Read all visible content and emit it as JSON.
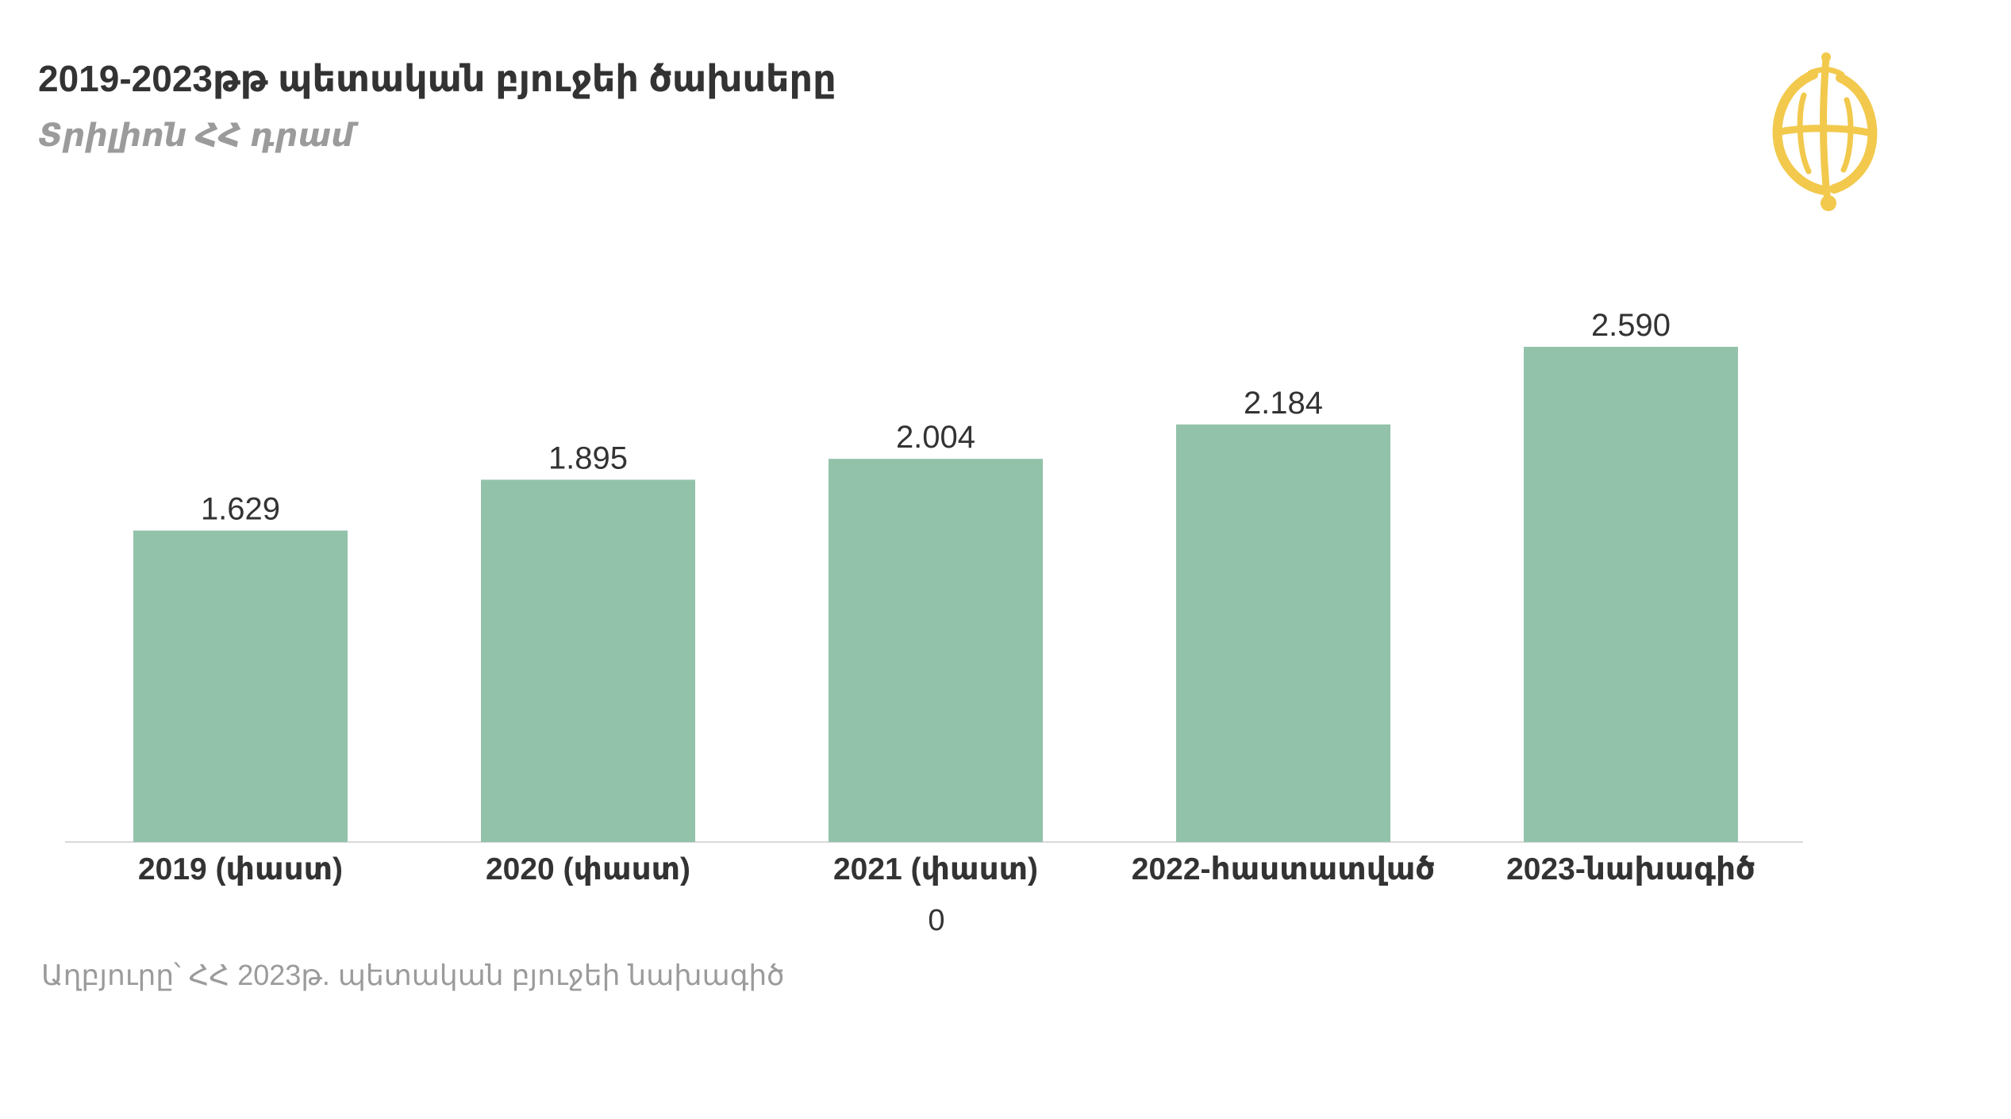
{
  "header": {
    "title": "2019-2023թթ պետական բյուջեի ծախսերը",
    "subtitle": "Տրիլիոն ՀՀ դրամ"
  },
  "logo": {
    "icon": "globe-logo-icon",
    "color": "#f2c94c"
  },
  "source": "Աղբյուրը՝ ՀՀ 2023թ. պետական բյուջեի նախագիծ",
  "colors": {
    "bar": "#93c2aa",
    "axis": "#d9d9d9",
    "text": "#333333",
    "muted": "#9b9b9b"
  },
  "chart_data": {
    "type": "bar",
    "categories": [
      "2019 (փաստ)",
      "2020 (փաստ)",
      "2021 (փաստ)",
      "2022-հաստատված",
      "2023-նախագիծ"
    ],
    "values": [
      1.629,
      1.895,
      2.004,
      2.184,
      2.59
    ],
    "value_labels": [
      "1.629",
      "1.895",
      "2.004",
      "2.184",
      "2.590"
    ],
    "xlabel": "0",
    "ylabel": "",
    "ylim": [
      0,
      2.59
    ],
    "grid": false,
    "legend": "none"
  }
}
